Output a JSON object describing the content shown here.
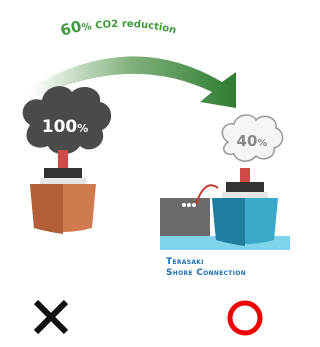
{
  "header": {
    "amount": "60",
    "label": "% CO2 reduction"
  },
  "before": {
    "amount": "100",
    "unit": "%"
  },
  "after": {
    "amount": "40",
    "unit": "%"
  },
  "brand": {
    "line1": "Terasaki",
    "line2": "Shore Connection"
  }
}
